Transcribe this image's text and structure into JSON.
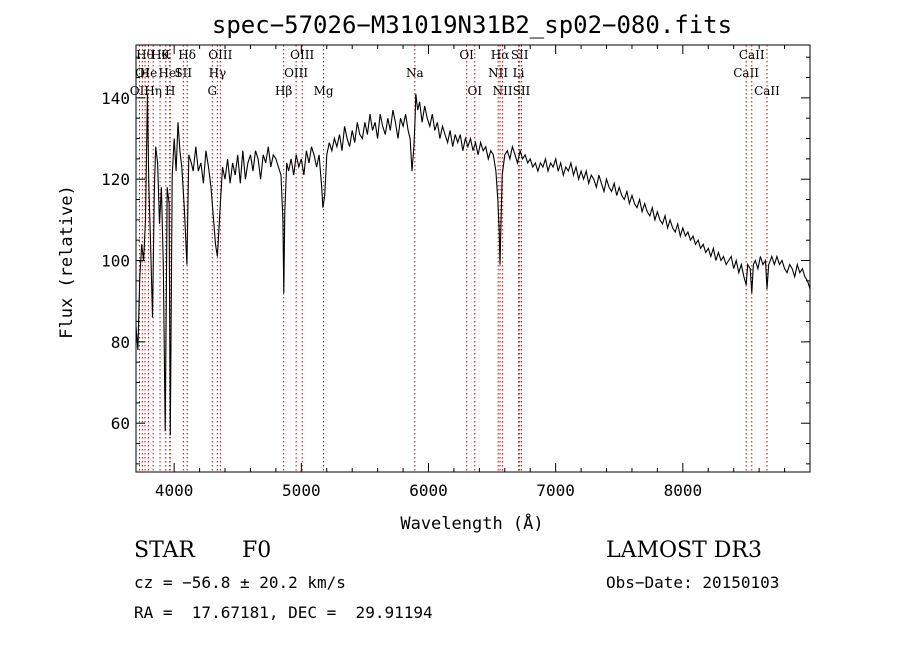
{
  "chart_data": {
    "type": "line",
    "title": "spec−57026−M31019N31B2_sp02−080.fits",
    "xlabel": "Wavelength (Å)",
    "ylabel": "Flux (relative)",
    "xlim": [
      3700,
      9000
    ],
    "ylim": [
      48,
      153
    ],
    "xticks": [
      4000,
      5000,
      6000,
      7000,
      8000
    ],
    "yticks": [
      60,
      80,
      100,
      120,
      140
    ],
    "series": [
      {
        "name": "spectrum",
        "points": [
          [
            3700,
            84
          ],
          [
            3715,
            78
          ],
          [
            3730,
            96
          ],
          [
            3745,
            104
          ],
          [
            3760,
            100
          ],
          [
            3775,
            110
          ],
          [
            3790,
            141
          ],
          [
            3800,
            120
          ],
          [
            3815,
            104
          ],
          [
            3830,
            86
          ],
          [
            3845,
            118
          ],
          [
            3855,
            128
          ],
          [
            3870,
            124
          ],
          [
            3885,
            109
          ],
          [
            3900,
            118
          ],
          [
            3915,
            99
          ],
          [
            3930,
            58
          ],
          [
            3945,
            118
          ],
          [
            3960,
            114
          ],
          [
            3970,
            57
          ],
          [
            3985,
            121
          ],
          [
            4000,
            130
          ],
          [
            4015,
            122
          ],
          [
            4030,
            134
          ],
          [
            4045,
            127
          ],
          [
            4060,
            123
          ],
          [
            4080,
            113
          ],
          [
            4100,
            99
          ],
          [
            4115,
            126
          ],
          [
            4135,
            124
          ],
          [
            4150,
            122
          ],
          [
            4170,
            128
          ],
          [
            4190,
            122
          ],
          [
            4210,
            124
          ],
          [
            4230,
            119
          ],
          [
            4250,
            127
          ],
          [
            4270,
            123
          ],
          [
            4290,
            118
          ],
          [
            4310,
            110
          ],
          [
            4325,
            104
          ],
          [
            4340,
            101
          ],
          [
            4360,
            112
          ],
          [
            4380,
            123
          ],
          [
            4400,
            120
          ],
          [
            4420,
            125
          ],
          [
            4440,
            119
          ],
          [
            4460,
            124
          ],
          [
            4480,
            121
          ],
          [
            4500,
            126
          ],
          [
            4520,
            119
          ],
          [
            4540,
            127
          ],
          [
            4560,
            120
          ],
          [
            4580,
            124
          ],
          [
            4600,
            126
          ],
          [
            4620,
            122
          ],
          [
            4640,
            127
          ],
          [
            4660,
            125
          ],
          [
            4680,
            120
          ],
          [
            4700,
            126
          ],
          [
            4720,
            124
          ],
          [
            4740,
            128
          ],
          [
            4760,
            123
          ],
          [
            4780,
            126
          ],
          [
            4800,
            125
          ],
          [
            4820,
            123
          ],
          [
            4840,
            121
          ],
          [
            4855,
            110
          ],
          [
            4862,
            92
          ],
          [
            4870,
            112
          ],
          [
            4885,
            124
          ],
          [
            4900,
            122
          ],
          [
            4920,
            125
          ],
          [
            4940,
            121
          ],
          [
            4960,
            126
          ],
          [
            4980,
            123
          ],
          [
            5000,
            125
          ],
          [
            5020,
            121
          ],
          [
            5040,
            127
          ],
          [
            5060,
            124
          ],
          [
            5080,
            128
          ],
          [
            5100,
            126
          ],
          [
            5120,
            123
          ],
          [
            5140,
            126
          ],
          [
            5160,
            118
          ],
          [
            5170,
            113
          ],
          [
            5184,
            116
          ],
          [
            5200,
            126
          ],
          [
            5220,
            129
          ],
          [
            5240,
            127
          ],
          [
            5260,
            130
          ],
          [
            5280,
            128
          ],
          [
            5300,
            131
          ],
          [
            5320,
            127
          ],
          [
            5340,
            133
          ],
          [
            5360,
            130
          ],
          [
            5380,
            128
          ],
          [
            5400,
            132
          ],
          [
            5420,
            129
          ],
          [
            5440,
            134
          ],
          [
            5460,
            131
          ],
          [
            5480,
            130
          ],
          [
            5500,
            134
          ],
          [
            5520,
            131
          ],
          [
            5540,
            136
          ],
          [
            5560,
            132
          ],
          [
            5580,
            134
          ],
          [
            5600,
            130
          ],
          [
            5620,
            136
          ],
          [
            5640,
            133
          ],
          [
            5660,
            131
          ],
          [
            5680,
            135
          ],
          [
            5700,
            132
          ],
          [
            5720,
            137
          ],
          [
            5740,
            134
          ],
          [
            5760,
            130
          ],
          [
            5780,
            135
          ],
          [
            5800,
            133
          ],
          [
            5820,
            136
          ],
          [
            5840,
            132
          ],
          [
            5855,
            130
          ],
          [
            5870,
            122
          ],
          [
            5885,
            128
          ],
          [
            5895,
            135
          ],
          [
            5900,
            141
          ],
          [
            5915,
            137
          ],
          [
            5930,
            139
          ],
          [
            5950,
            134
          ],
          [
            5970,
            138
          ],
          [
            5990,
            135
          ],
          [
            6010,
            133
          ],
          [
            6030,
            136
          ],
          [
            6050,
            132
          ],
          [
            6070,
            134
          ],
          [
            6090,
            130
          ],
          [
            6110,
            133
          ],
          [
            6130,
            131
          ],
          [
            6150,
            129
          ],
          [
            6170,
            132
          ],
          [
            6190,
            128
          ],
          [
            6210,
            131
          ],
          [
            6230,
            129
          ],
          [
            6250,
            131
          ],
          [
            6270,
            127
          ],
          [
            6290,
            130
          ],
          [
            6310,
            128
          ],
          [
            6330,
            130
          ],
          [
            6350,
            127
          ],
          [
            6370,
            129
          ],
          [
            6390,
            126
          ],
          [
            6410,
            129
          ],
          [
            6430,
            127
          ],
          [
            6450,
            128
          ],
          [
            6470,
            125
          ],
          [
            6490,
            127
          ],
          [
            6510,
            126
          ],
          [
            6530,
            122
          ],
          [
            6545,
            115
          ],
          [
            6555,
            108
          ],
          [
            6562,
            99
          ],
          [
            6570,
            109
          ],
          [
            6580,
            121
          ],
          [
            6600,
            126
          ],
          [
            6620,
            127
          ],
          [
            6640,
            125
          ],
          [
            6660,
            128
          ],
          [
            6680,
            126
          ],
          [
            6700,
            124
          ],
          [
            6720,
            127
          ],
          [
            6740,
            125
          ],
          [
            6760,
            126
          ],
          [
            6780,
            124
          ],
          [
            6800,
            125
          ],
          [
            6820,
            123
          ],
          [
            6840,
            124
          ],
          [
            6860,
            122
          ],
          [
            6880,
            124
          ],
          [
            6900,
            123
          ],
          [
            6920,
            125
          ],
          [
            6940,
            122
          ],
          [
            6960,
            124
          ],
          [
            6980,
            123
          ],
          [
            7000,
            125
          ],
          [
            7020,
            122
          ],
          [
            7040,
            124
          ],
          [
            7060,
            121
          ],
          [
            7080,
            123
          ],
          [
            7100,
            122
          ],
          [
            7120,
            124
          ],
          [
            7140,
            121
          ],
          [
            7160,
            123
          ],
          [
            7180,
            120
          ],
          [
            7200,
            122
          ],
          [
            7220,
            120
          ],
          [
            7240,
            122
          ],
          [
            7260,
            119
          ],
          [
            7280,
            121
          ],
          [
            7300,
            120
          ],
          [
            7320,
            118
          ],
          [
            7340,
            121
          ],
          [
            7360,
            119
          ],
          [
            7380,
            117
          ],
          [
            7400,
            120
          ],
          [
            7420,
            118
          ],
          [
            7440,
            117
          ],
          [
            7460,
            119
          ],
          [
            7480,
            116
          ],
          [
            7500,
            118
          ],
          [
            7520,
            116
          ],
          [
            7540,
            115
          ],
          [
            7560,
            117
          ],
          [
            7580,
            114
          ],
          [
            7600,
            116
          ],
          [
            7620,
            114
          ],
          [
            7640,
            113
          ],
          [
            7660,
            115
          ],
          [
            7680,
            112
          ],
          [
            7700,
            114
          ],
          [
            7720,
            112
          ],
          [
            7740,
            111
          ],
          [
            7760,
            113
          ],
          [
            7780,
            110
          ],
          [
            7800,
            112
          ],
          [
            7820,
            110
          ],
          [
            7840,
            109
          ],
          [
            7860,
            111
          ],
          [
            7880,
            108
          ],
          [
            7900,
            110
          ],
          [
            7920,
            108
          ],
          [
            7940,
            107
          ],
          [
            7960,
            109
          ],
          [
            7980,
            106
          ],
          [
            8000,
            108
          ],
          [
            8020,
            106
          ],
          [
            8040,
            107
          ],
          [
            8060,
            105
          ],
          [
            8080,
            106
          ],
          [
            8100,
            104
          ],
          [
            8120,
            105
          ],
          [
            8140,
            103
          ],
          [
            8160,
            104
          ],
          [
            8180,
            102
          ],
          [
            8200,
            103
          ],
          [
            8220,
            101
          ],
          [
            8240,
            103
          ],
          [
            8260,
            100
          ],
          [
            8280,
            102
          ],
          [
            8300,
            100
          ],
          [
            8320,
            101
          ],
          [
            8340,
            99
          ],
          [
            8360,
            100
          ],
          [
            8380,
            101
          ],
          [
            8400,
            98
          ],
          [
            8420,
            100
          ],
          [
            8440,
            97
          ],
          [
            8460,
            99
          ],
          [
            8480,
            96
          ],
          [
            8498,
            94
          ],
          [
            8510,
            99
          ],
          [
            8530,
            98
          ],
          [
            8542,
            92
          ],
          [
            8555,
            99
          ],
          [
            8570,
            100
          ],
          [
            8590,
            98
          ],
          [
            8610,
            101
          ],
          [
            8630,
            99
          ],
          [
            8650,
            100
          ],
          [
            8662,
            93
          ],
          [
            8675,
            99
          ],
          [
            8700,
            101
          ],
          [
            8720,
            99
          ],
          [
            8740,
            101
          ],
          [
            8760,
            99
          ],
          [
            8780,
            100
          ],
          [
            8800,
            98
          ],
          [
            8820,
            97
          ],
          [
            8840,
            99
          ],
          [
            8860,
            98
          ],
          [
            8880,
            96
          ],
          [
            8900,
            99
          ],
          [
            8920,
            97
          ],
          [
            8940,
            98
          ],
          [
            8960,
            96
          ],
          [
            8980,
            95
          ],
          [
            9000,
            93
          ]
        ]
      }
    ],
    "lines": [
      {
        "wave": 3727,
        "label": "OII",
        "row": 2
      },
      {
        "wave": 3750,
        "label": "OI",
        "row": 1
      },
      {
        "wave": 3771,
        "label": "Hθ",
        "row": 0
      },
      {
        "wave": 3798,
        "label": "He",
        "row": 1
      },
      {
        "wave": 3835,
        "label": "Hη",
        "row": 2
      },
      {
        "wave": 3889,
        "label": "Hθ",
        "row": 0
      },
      {
        "wave": 3934,
        "label": "K",
        "row": 0
      },
      {
        "wave": 3965,
        "label": "HeI",
        "row": 1
      },
      {
        "wave": 3969,
        "label": "H",
        "row": 2
      },
      {
        "wave": 4072,
        "label": "SII",
        "row": 1
      },
      {
        "wave": 4102,
        "label": "Hδ",
        "row": 0
      },
      {
        "wave": 4300,
        "label": "G",
        "row": 2
      },
      {
        "wave": 4340,
        "label": "Hγ",
        "row": 1
      },
      {
        "wave": 4363,
        "label": "OIII",
        "row": 0
      },
      {
        "wave": 4861,
        "label": "Hβ",
        "row": 2
      },
      {
        "wave": 4959,
        "label": "OIII",
        "row": 1
      },
      {
        "wave": 5007,
        "label": "OIII",
        "row": 0
      },
      {
        "wave": 5175,
        "label": "Mg",
        "row": 2
      },
      {
        "wave": 5893,
        "label": "Na",
        "row": 1
      },
      {
        "wave": 6300,
        "label": "OI",
        "row": 0
      },
      {
        "wave": 6364,
        "label": "OI",
        "row": 2
      },
      {
        "wave": 6548,
        "label": "NII",
        "row": 1
      },
      {
        "wave": 6563,
        "label": "Hα",
        "row": 0
      },
      {
        "wave": 6583,
        "label": "NII",
        "row": 2
      },
      {
        "wave": 6708,
        "label": "Li",
        "row": 1
      },
      {
        "wave": 6717,
        "label": "SII",
        "row": 0
      },
      {
        "wave": 6731,
        "label": "SII",
        "row": 2
      },
      {
        "wave": 8498,
        "label": "CaII",
        "row": 1
      },
      {
        "wave": 8542,
        "label": "CaII",
        "row": 0
      },
      {
        "wave": 8662,
        "label": "CaII",
        "row": 2
      }
    ]
  },
  "info": {
    "object_class": "STAR",
    "subclass": "F0",
    "cz": "cz = −56.8 ± 20.2 km/s",
    "coords": "RA =  17.67181, DEC =  29.91194",
    "survey": "LAMOST DR3",
    "obs_date": "Obs−Date: 20150103"
  },
  "colors": {
    "line": "#d00000",
    "trace": "#000000"
  }
}
